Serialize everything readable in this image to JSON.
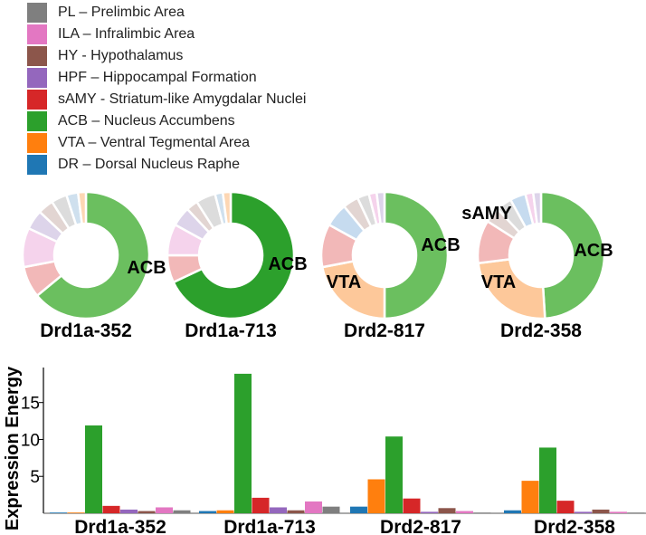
{
  "legend": [
    {
      "code": "PL",
      "label": "PL – Prelimbic Area",
      "color": "#7f7f7f"
    },
    {
      "code": "ILA",
      "label": "ILA – Infralimbic Area",
      "color": "#e377c2"
    },
    {
      "code": "HY",
      "label": "HY - Hypothalamus",
      "color": "#8c564b"
    },
    {
      "code": "HPF",
      "label": "HPF – Hippocampal Formation",
      "color": "#9467bd"
    },
    {
      "code": "sAMY",
      "label": "sAMY - Striatum-like Amygdalar Nuclei",
      "color": "#d62728"
    },
    {
      "code": "ACB",
      "label": "ACB – Nucleus Accumbens",
      "color": "#2ca02c"
    },
    {
      "code": "VTA",
      "label": "VTA – Ventral Tegmental Area",
      "color": "#ff7f0e"
    },
    {
      "code": "DR",
      "label": "DR – Dorsal Nucleus Raphe",
      "color": "#1f77b4"
    }
  ],
  "chart_data": [
    {
      "type": "pie",
      "subtype": "donut",
      "title": "Drd1a-352",
      "categories": [
        "ACB",
        "sAMY",
        "ILA",
        "HPF",
        "HY",
        "PL",
        "DR",
        "VTA"
      ],
      "values": [
        64,
        8,
        10,
        5,
        4,
        4,
        3,
        2
      ],
      "slice_colors": [
        "#6bbf5f",
        "#f2b8b8",
        "#f5d3ec",
        "#ddd4ea",
        "#e2d5d2",
        "#dcdcdc",
        "#cfe0ee",
        "#fdd7b4"
      ],
      "labels": [
        {
          "text": "ACB",
          "slice": "ACB"
        }
      ]
    },
    {
      "type": "pie",
      "subtype": "donut",
      "title": "Drd1a-713",
      "categories": [
        "ACB",
        "sAMY",
        "ILA",
        "HPF",
        "HY",
        "PL",
        "DR",
        "VTA"
      ],
      "values": [
        68,
        7,
        8,
        5,
        3,
        5,
        2,
        2
      ],
      "slice_colors": [
        "#2ca02c",
        "#f2b8b8",
        "#f5d3ec",
        "#ddd4ea",
        "#e2d5d2",
        "#dcdcdc",
        "#cfe0ee",
        "#fdd7b4"
      ],
      "labels": [
        {
          "text": "ACB",
          "slice": "ACB"
        }
      ]
    },
    {
      "type": "pie",
      "subtype": "donut",
      "title": "Drd2-817",
      "categories": [
        "ACB",
        "VTA",
        "sAMY",
        "DR",
        "HY",
        "PL",
        "ILA",
        "HPF"
      ],
      "values": [
        50,
        22,
        11,
        6,
        4,
        3,
        2,
        2
      ],
      "slice_colors": [
        "#6bbf5f",
        "#fdc89a",
        "#f2b8b8",
        "#c6dbef",
        "#e2d5d2",
        "#dcdcdc",
        "#f5d3ec",
        "#ddd4ea"
      ],
      "labels": [
        {
          "text": "ACB",
          "slice": "ACB"
        },
        {
          "text": "VTA",
          "slice": "VTA"
        }
      ]
    },
    {
      "type": "pie",
      "subtype": "donut",
      "title": "Drd2-358",
      "categories": [
        "ACB",
        "VTA",
        "sAMY",
        "HY",
        "PL",
        "DR",
        "ILA",
        "HPF"
      ],
      "values": [
        49,
        24,
        11,
        4,
        4,
        4,
        2,
        2
      ],
      "slice_colors": [
        "#6bbf5f",
        "#fdc89a",
        "#f2b8b8",
        "#e2d5d2",
        "#dcdcdc",
        "#c6dbef",
        "#f5d3ec",
        "#ddd4ea"
      ],
      "labels": [
        {
          "text": "ACB",
          "slice": "ACB"
        },
        {
          "text": "VTA",
          "slice": "VTA"
        },
        {
          "text": "sAMY",
          "slice": "sAMY"
        }
      ]
    },
    {
      "type": "bar",
      "title": "",
      "xlabel": "",
      "ylabel": "Expression Energy",
      "ylim": [
        0,
        19.5
      ],
      "yticks": [
        5,
        10,
        15
      ],
      "categories": [
        "Drd1a-352",
        "Drd1a-713",
        "Drd2-817",
        "Drd2-358"
      ],
      "series": [
        {
          "name": "DR",
          "color": "#1f77b4",
          "values": [
            0.1,
            0.3,
            0.9,
            0.4
          ]
        },
        {
          "name": "VTA",
          "color": "#ff7f0e",
          "values": [
            0.1,
            0.4,
            4.6,
            4.4
          ]
        },
        {
          "name": "ACB",
          "color": "#2ca02c",
          "values": [
            11.9,
            18.9,
            10.4,
            8.9
          ]
        },
        {
          "name": "sAMY",
          "color": "#d62728",
          "values": [
            1.0,
            2.1,
            2.0,
            1.7
          ]
        },
        {
          "name": "HPF",
          "color": "#9467bd",
          "values": [
            0.5,
            0.8,
            0.2,
            0.2
          ]
        },
        {
          "name": "HY",
          "color": "#8c564b",
          "values": [
            0.3,
            0.4,
            0.7,
            0.5
          ]
        },
        {
          "name": "ILA",
          "color": "#e377c2",
          "values": [
            0.8,
            1.6,
            0.3,
            0.2
          ]
        },
        {
          "name": "PL",
          "color": "#7f7f7f",
          "values": [
            0.4,
            0.9,
            0.1,
            0.1
          ]
        }
      ]
    }
  ]
}
